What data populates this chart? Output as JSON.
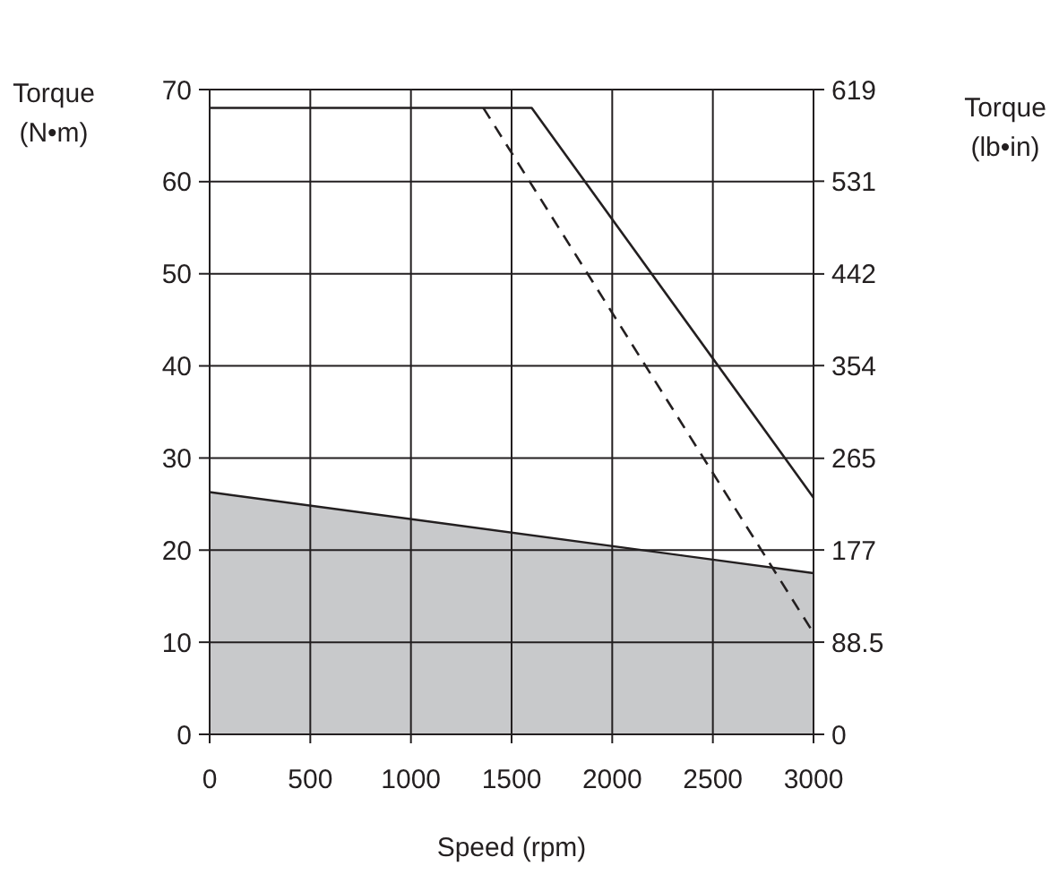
{
  "chart_data": {
    "type": "line",
    "xlabel": "Speed (rpm)",
    "ylabel": "Torque (N•m)",
    "y2label": "Torque (lb•in)",
    "xlim": [
      0,
      3000
    ],
    "xticks": [
      0,
      500,
      1000,
      1500,
      2000,
      2500,
      3000
    ],
    "ylim": [
      0,
      70
    ],
    "yticks": [
      0,
      10,
      20,
      30,
      40,
      50,
      60,
      70
    ],
    "y2lim": [
      0,
      619
    ],
    "y2ticks": [
      0,
      88.5,
      177,
      265,
      354,
      442,
      531,
      619
    ],
    "grid": true,
    "series": [
      {
        "type": "area",
        "color": "#c8c9cb",
        "x": [
          0,
          3000
        ],
        "values": [
          26.3,
          17.5
        ]
      },
      {
        "color": "#231f20",
        "line_style": "solid",
        "x": [
          0,
          1600,
          3000
        ],
        "values": [
          68,
          68,
          25.7
        ]
      },
      {
        "color": "#231f20",
        "line_style": "dashed",
        "x": [
          1360,
          3000
        ],
        "values": [
          68,
          11
        ]
      }
    ]
  }
}
